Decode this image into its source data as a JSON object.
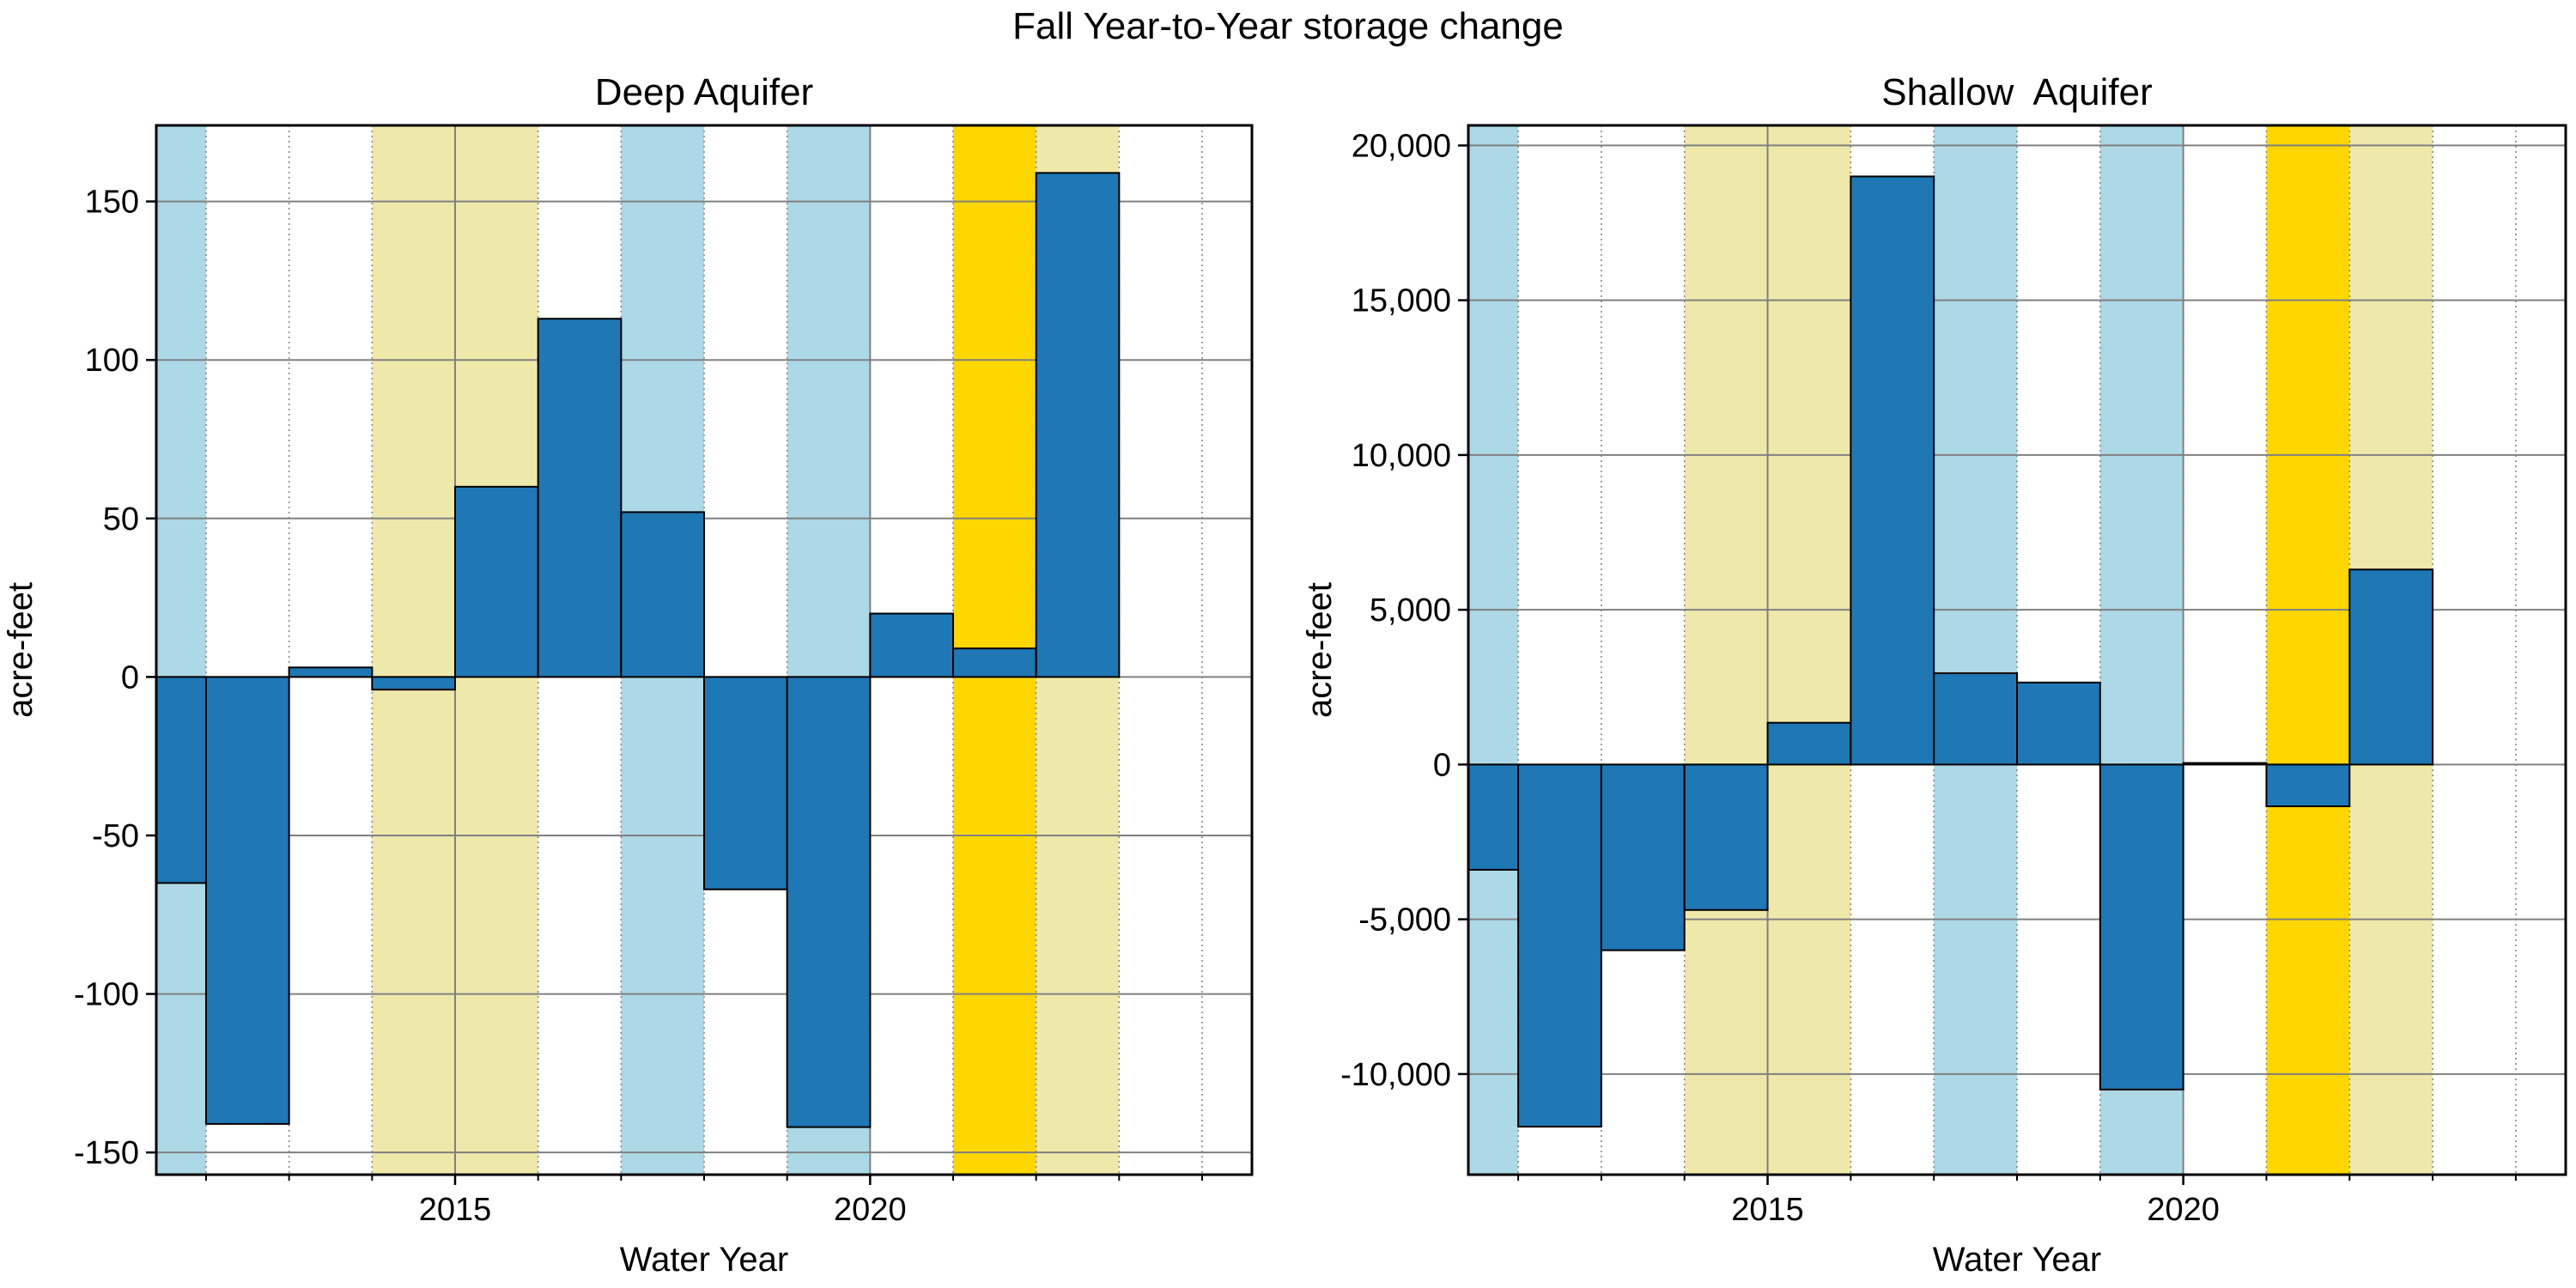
{
  "figure": {
    "title": "Fall Year-to-Year storage change"
  },
  "year_type_colors": {
    "wet": "#ADD8E6",
    "dry": "#EEE8AA",
    "critically_dry": "#FFD700",
    "bar": "#1F77B4"
  },
  "year_types": [
    {
      "x_start": 2011.0,
      "x_end": 2012.0,
      "type": "wet"
    },
    {
      "x_start": 2014.0,
      "x_end": 2016.0,
      "type": "dry"
    },
    {
      "x_start": 2017.0,
      "x_end": 2018.0,
      "type": "wet"
    },
    {
      "x_start": 2019.0,
      "x_end": 2020.0,
      "type": "wet"
    },
    {
      "x_start": 2021.0,
      "x_end": 2022.0,
      "type": "critically_dry"
    },
    {
      "x_start": 2022.0,
      "x_end": 2023.0,
      "type": "dry"
    }
  ],
  "chart_data": [
    {
      "type": "bar",
      "title": "Deep Aquifer",
      "xlabel": "Water Year",
      "ylabel": "acre-feet",
      "x": [
        2012,
        2013,
        2014,
        2015,
        2016,
        2017,
        2018,
        2019,
        2020,
        2021,
        2022,
        2023
      ],
      "values": [
        -65,
        -141,
        3,
        -4,
        60,
        113,
        52,
        -67,
        -142,
        20,
        9,
        159
      ],
      "xlim": [
        2011.4,
        2024.6
      ],
      "ylim": [
        -157,
        174
      ],
      "xticks": [
        2015,
        2020
      ],
      "xtick_labels": [
        "2015",
        "2020"
      ],
      "yticks": [
        -150,
        -100,
        -50,
        0,
        50,
        100,
        150
      ],
      "ytick_labels": [
        "-150",
        "-100",
        "-50",
        "0",
        "50",
        "100",
        "150"
      ],
      "grid": true
    },
    {
      "type": "bar",
      "title": "Shallow  Aquifer",
      "xlabel": "Water Year",
      "ylabel": "acre-feet",
      "x": [
        2012,
        2013,
        2014,
        2015,
        2016,
        2017,
        2018,
        2019,
        2020,
        2021,
        2022,
        2023
      ],
      "values": [
        -3400,
        -11700,
        -6000,
        -4700,
        1350,
        19000,
        2950,
        2650,
        -10500,
        50,
        -1350,
        6300
      ],
      "xlim": [
        2011.4,
        2024.6
      ],
      "ylim": [
        -13250,
        20650
      ],
      "xticks": [
        2015,
        2020
      ],
      "xtick_labels": [
        "2015",
        "2020"
      ],
      "yticks": [
        -10000,
        -5000,
        0,
        5000,
        10000,
        15000,
        20000
      ],
      "ytick_labels": [
        "-10,000",
        "-5,000",
        "0",
        "5,000",
        "10,000",
        "15,000",
        "20,000"
      ],
      "grid": true
    }
  ]
}
